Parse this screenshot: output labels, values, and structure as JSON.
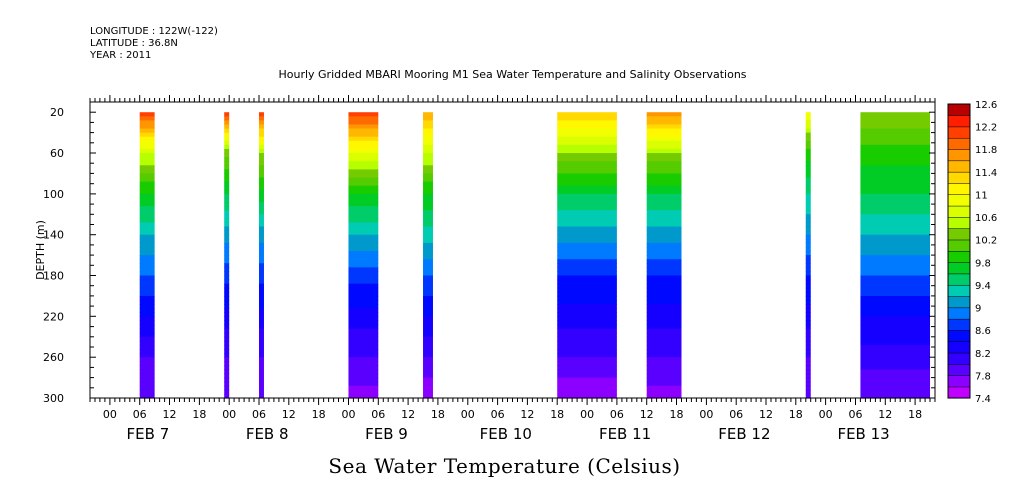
{
  "header": {
    "longitude": "LONGITUDE : 122W(-122)",
    "latitude": "LATITUDE : 36.8N",
    "year": "YEAR : 2011"
  },
  "chart_data": {
    "type": "heatmap",
    "title": "Hourly Gridded MBARI Mooring M1 Sea Water Temperature and Salinity Observations",
    "xlabel": "Sea Water Temperature (Celsius)",
    "ylabel": "DEPTH (m)",
    "ylim": [
      300,
      10
    ],
    "y_ticks": [
      20,
      60,
      100,
      140,
      180,
      220,
      260,
      300
    ],
    "x_start": "FEB 6 20:00",
    "x_end": "FEB 13 22:00",
    "hour_ticks": [
      "00",
      "06",
      "12",
      "18"
    ],
    "day_labels": [
      "FEB 7",
      "FEB 8",
      "FEB 9",
      "FEB 10",
      "FEB 11",
      "FEB 12",
      "FEB 13"
    ],
    "colorbar": {
      "min": 7.4,
      "max": 12.6,
      "step": 0.2,
      "labels": [
        "12.6",
        "12.2",
        "11.8",
        "11.4",
        "11",
        "10.6",
        "10.2",
        "9.8",
        "9.4",
        "9",
        "8.6",
        "8.2",
        "7.8",
        "7.4"
      ]
    },
    "depth_levels": [
      20,
      60,
      100,
      140,
      180,
      220,
      260,
      300
    ],
    "segments": [
      {
        "start": "FEB 7 06:00",
        "end": "FEB 7 09:00",
        "temps": [
          12.2,
          10.6,
          9.8,
          9.2,
          8.8,
          8.4,
          8.0,
          7.8
        ]
      },
      {
        "start": "FEB 7 23:00",
        "end": "FEB 8 00:00",
        "temps": [
          12.1,
          10.3,
          9.6,
          9.1,
          8.7,
          8.3,
          8.0,
          7.8
        ]
      },
      {
        "start": "FEB 8 06:00",
        "end": "FEB 8 07:00",
        "temps": [
          12.2,
          10.4,
          9.7,
          9.1,
          8.7,
          8.3,
          8.0,
          7.8
        ]
      },
      {
        "start": "FEB 9 00:00",
        "end": "FEB 9 06:00",
        "temps": [
          12.2,
          10.8,
          9.8,
          9.2,
          8.7,
          8.3,
          8.0,
          7.7
        ]
      },
      {
        "start": "FEB 9 15:00",
        "end": "FEB 9 17:00",
        "temps": [
          11.6,
          10.6,
          9.8,
          9.3,
          8.8,
          8.4,
          8.0,
          7.6
        ]
      },
      {
        "start": "FEB 10 18:00",
        "end": "FEB 11 06:00",
        "temps": [
          11.4,
          10.4,
          9.6,
          9.1,
          8.6,
          8.3,
          8.0,
          7.6
        ]
      },
      {
        "start": "FEB 11 12:00",
        "end": "FEB 11 19:00",
        "temps": [
          11.8,
          10.4,
          9.6,
          9.1,
          8.6,
          8.3,
          8.0,
          7.7
        ]
      },
      {
        "start": "FEB 12 20:00",
        "end": "FEB 12 21:00",
        "temps": [
          11.0,
          9.9,
          9.4,
          9.0,
          8.6,
          8.3,
          8.0,
          7.9
        ]
      },
      {
        "start": "FEB 13 07:00",
        "end": "FEB 13 21:00",
        "temps": [
          10.4,
          9.9,
          9.6,
          9.2,
          8.8,
          8.4,
          8.1,
          7.8
        ]
      }
    ]
  }
}
